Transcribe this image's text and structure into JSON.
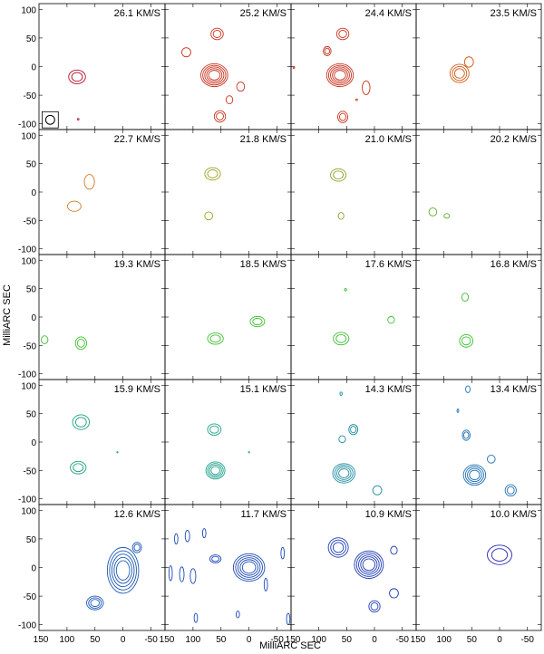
{
  "chart_data": {
    "type": "contour_grid",
    "title": "",
    "xlabel": "MilliARC SEC",
    "ylabel": "MilliARC SEC",
    "xlim": [
      150,
      -75
    ],
    "ylim": [
      -110,
      110
    ],
    "xticks": [
      150,
      100,
      50,
      0,
      -50
    ],
    "yticks": [
      100,
      50,
      0,
      -50,
      -100
    ],
    "x_tick_labels": [
      "150",
      "100",
      "50",
      "0",
      "-50"
    ],
    "y_tick_labels": [
      "100",
      "50",
      "0",
      "-50",
      "-100"
    ],
    "beam": {
      "x": 130,
      "y": -93,
      "r": 8
    },
    "panels": [
      {
        "label": "26.1 KM/S",
        "velocity": 26.1,
        "color": "#b0102c",
        "sources": [
          {
            "x": 82,
            "y": -18,
            "rx": 15,
            "ry": 12,
            "levels": 2
          },
          {
            "x": 80,
            "y": -92,
            "rx": 1.5,
            "ry": 1.5,
            "levels": 1
          }
        ]
      },
      {
        "label": "25.2 KM/S",
        "velocity": 25.2,
        "color": "#c8321e",
        "sources": [
          {
            "x": 62,
            "y": -15,
            "rx": 24,
            "ry": 20,
            "levels": 5
          },
          {
            "x": 57,
            "y": 57,
            "rx": 11,
            "ry": 10,
            "levels": 2
          },
          {
            "x": 112,
            "y": 25,
            "rx": 8,
            "ry": 8,
            "levels": 1
          },
          {
            "x": 15,
            "y": -35,
            "rx": 7,
            "ry": 8,
            "levels": 1
          },
          {
            "x": 35,
            "y": -58,
            "rx": 6,
            "ry": 7,
            "levels": 1
          },
          {
            "x": 52,
            "y": -87,
            "rx": 10,
            "ry": 10,
            "levels": 2
          }
        ]
      },
      {
        "label": "24.4 KM/S",
        "velocity": 24.4,
        "color": "#c8321e",
        "sources": [
          {
            "x": 62,
            "y": -15,
            "rx": 24,
            "ry": 20,
            "levels": 5
          },
          {
            "x": 57,
            "y": 57,
            "rx": 11,
            "ry": 10,
            "levels": 2
          },
          {
            "x": 85,
            "y": 27,
            "rx": 7,
            "ry": 8,
            "levels": 2
          },
          {
            "x": 15,
            "y": -37,
            "rx": 7,
            "ry": 12,
            "levels": 1
          },
          {
            "x": 57,
            "y": -88,
            "rx": 9,
            "ry": 10,
            "levels": 2
          },
          {
            "x": 32,
            "y": -58,
            "rx": 1.5,
            "ry": 1.5,
            "levels": 1
          },
          {
            "x": 145,
            "y": -2,
            "rx": 1.5,
            "ry": 1.5,
            "levels": 1
          }
        ]
      },
      {
        "label": "23.5 KM/S",
        "velocity": 23.5,
        "color": "#d25a14",
        "sources": [
          {
            "x": 72,
            "y": -12,
            "rx": 17,
            "ry": 16,
            "levels": 3
          },
          {
            "x": 55,
            "y": 8,
            "rx": 8,
            "ry": 9,
            "levels": 1
          }
        ]
      },
      {
        "label": "22.7 KM/S",
        "velocity": 22.7,
        "color": "#d2781e",
        "sources": [
          {
            "x": 60,
            "y": 18,
            "rx": 9,
            "ry": 13,
            "levels": 1
          },
          {
            "x": 87,
            "y": -25,
            "rx": 12,
            "ry": 9,
            "levels": 1
          }
        ]
      },
      {
        "label": "21.8 KM/S",
        "velocity": 21.8,
        "color": "#9aa01e",
        "sources": [
          {
            "x": 65,
            "y": 32,
            "rx": 14,
            "ry": 11,
            "levels": 2
          },
          {
            "x": 72,
            "y": -42,
            "rx": 7,
            "ry": 7,
            "levels": 1
          }
        ]
      },
      {
        "label": "21.0 KM/S",
        "velocity": 21.0,
        "color": "#8aa028",
        "sources": [
          {
            "x": 65,
            "y": 30,
            "rx": 14,
            "ry": 11,
            "levels": 2
          },
          {
            "x": 60,
            "y": -42,
            "rx": 5,
            "ry": 6,
            "levels": 1
          }
        ]
      },
      {
        "label": "20.2 KM/S",
        "velocity": 20.2,
        "color": "#5aaa28",
        "sources": [
          {
            "x": 120,
            "y": -35,
            "rx": 7,
            "ry": 7,
            "levels": 1
          },
          {
            "x": 95,
            "y": -42,
            "rx": 5,
            "ry": 4,
            "levels": 1
          }
        ]
      },
      {
        "label": "19.3 KM/S",
        "velocity": 19.3,
        "color": "#3cbe32",
        "sources": [
          {
            "x": 140,
            "y": -40,
            "rx": 6,
            "ry": 7,
            "levels": 1
          },
          {
            "x": 75,
            "y": -46,
            "rx": 10,
            "ry": 11,
            "levels": 2
          }
        ]
      },
      {
        "label": "18.5 KM/S",
        "velocity": 18.5,
        "color": "#3cbe32",
        "sources": [
          {
            "x": 60,
            "y": -38,
            "rx": 14,
            "ry": 10,
            "levels": 2
          },
          {
            "x": -15,
            "y": -8,
            "rx": 13,
            "ry": 9,
            "levels": 2
          }
        ]
      },
      {
        "label": "17.6 KM/S",
        "velocity": 17.6,
        "color": "#3cbe32",
        "sources": [
          {
            "x": 60,
            "y": -38,
            "rx": 14,
            "ry": 11,
            "levels": 2
          },
          {
            "x": 52,
            "y": 48,
            "rx": 2,
            "ry": 2,
            "levels": 1
          },
          {
            "x": -30,
            "y": -5,
            "rx": 6,
            "ry": 6,
            "levels": 1
          }
        ]
      },
      {
        "label": "16.8 KM/S",
        "velocity": 16.8,
        "color": "#3cbe32",
        "sources": [
          {
            "x": 60,
            "y": -42,
            "rx": 12,
            "ry": 11,
            "levels": 2
          },
          {
            "x": 62,
            "y": 35,
            "rx": 6,
            "ry": 7,
            "levels": 1
          }
        ]
      },
      {
        "label": "15.9 KM/S",
        "velocity": 15.9,
        "color": "#1ea082",
        "sources": [
          {
            "x": 75,
            "y": 35,
            "rx": 15,
            "ry": 13,
            "levels": 2
          },
          {
            "x": 80,
            "y": -45,
            "rx": 14,
            "ry": 11,
            "levels": 2
          },
          {
            "x": 10,
            "y": -18,
            "rx": 1,
            "ry": 1,
            "levels": 1
          }
        ]
      },
      {
        "label": "15.1 KM/S",
        "velocity": 15.1,
        "color": "#1ea08c",
        "sources": [
          {
            "x": 62,
            "y": 22,
            "rx": 12,
            "ry": 10,
            "levels": 2
          },
          {
            "x": 60,
            "y": -50,
            "rx": 17,
            "ry": 15,
            "levels": 4
          },
          {
            "x": 0,
            "y": -18,
            "rx": 1,
            "ry": 1,
            "levels": 1
          }
        ]
      },
      {
        "label": "14.3 KM/S",
        "velocity": 14.3,
        "color": "#1e8ca0",
        "sources": [
          {
            "x": 55,
            "y": -55,
            "rx": 20,
            "ry": 17,
            "levels": 4
          },
          {
            "x": 38,
            "y": 22,
            "rx": 8,
            "ry": 9,
            "levels": 2
          },
          {
            "x": 58,
            "y": 5,
            "rx": 6,
            "ry": 6,
            "levels": 1
          },
          {
            "x": -5,
            "y": -85,
            "rx": 8,
            "ry": 8,
            "levels": 1
          },
          {
            "x": 60,
            "y": 85,
            "rx": 2,
            "ry": 3,
            "levels": 1
          }
        ]
      },
      {
        "label": "13.4 KM/S",
        "velocity": 13.4,
        "color": "#1e6eb4",
        "sources": [
          {
            "x": 45,
            "y": -58,
            "rx": 20,
            "ry": 18,
            "levels": 4
          },
          {
            "x": 60,
            "y": 12,
            "rx": 7,
            "ry": 9,
            "levels": 2
          },
          {
            "x": 57,
            "y": 93,
            "rx": 4,
            "ry": 6,
            "levels": 1
          },
          {
            "x": 75,
            "y": 55,
            "rx": 1.5,
            "ry": 3,
            "levels": 1
          },
          {
            "x": 15,
            "y": -30,
            "rx": 7,
            "ry": 7,
            "levels": 1
          },
          {
            "x": -20,
            "y": -85,
            "rx": 10,
            "ry": 10,
            "levels": 2
          }
        ]
      },
      {
        "label": "12.6 KM/S",
        "velocity": 12.6,
        "color": "#1e5ab4",
        "sources": [
          {
            "x": 0,
            "y": -5,
            "rx": 28,
            "ry": 40,
            "levels": 5
          },
          {
            "x": -25,
            "y": 35,
            "rx": 8,
            "ry": 9,
            "levels": 2
          },
          {
            "x": 50,
            "y": -62,
            "rx": 15,
            "ry": 12,
            "levels": 3
          }
        ]
      },
      {
        "label": "11.7 KM/S",
        "velocity": 11.7,
        "color": "#1e4ab4",
        "sources": [
          {
            "x": 0,
            "y": 0,
            "rx": 28,
            "ry": 24,
            "levels": 5
          },
          {
            "x": 60,
            "y": 15,
            "rx": 10,
            "ry": 7,
            "levels": 2
          },
          {
            "x": 100,
            "y": -15,
            "rx": 5,
            "ry": 13,
            "levels": 1
          },
          {
            "x": 120,
            "y": -12,
            "rx": 4,
            "ry": 13,
            "levels": 1
          },
          {
            "x": 140,
            "y": -10,
            "rx": 3,
            "ry": 13,
            "levels": 1
          },
          {
            "x": 110,
            "y": 55,
            "rx": 4,
            "ry": 10,
            "levels": 1
          },
          {
            "x": 130,
            "y": 50,
            "rx": 3,
            "ry": 9,
            "levels": 1
          },
          {
            "x": 80,
            "y": 60,
            "rx": 3,
            "ry": 8,
            "levels": 1
          },
          {
            "x": -30,
            "y": -30,
            "rx": 3,
            "ry": 11,
            "levels": 1
          },
          {
            "x": -60,
            "y": 25,
            "rx": 3,
            "ry": 10,
            "levels": 1
          },
          {
            "x": -70,
            "y": -90,
            "rx": 3,
            "ry": 10,
            "levels": 1
          },
          {
            "x": 95,
            "y": -88,
            "rx": 3,
            "ry": 8,
            "levels": 1
          },
          {
            "x": 20,
            "y": -82,
            "rx": 3,
            "ry": 6,
            "levels": 1
          }
        ]
      },
      {
        "label": "10.9 KM/S",
        "velocity": 10.9,
        "color": "#1e3cb4",
        "sources": [
          {
            "x": 10,
            "y": 5,
            "rx": 26,
            "ry": 24,
            "levels": 5
          },
          {
            "x": 65,
            "y": 35,
            "rx": 18,
            "ry": 17,
            "levels": 3
          },
          {
            "x": 0,
            "y": -68,
            "rx": 10,
            "ry": 10,
            "levels": 2
          },
          {
            "x": -35,
            "y": -45,
            "rx": 8,
            "ry": 8,
            "levels": 1
          },
          {
            "x": -35,
            "y": 30,
            "rx": 6,
            "ry": 7,
            "levels": 1
          }
        ]
      },
      {
        "label": "10.0 KM/S",
        "velocity": 10.0,
        "color": "#2a2ab4",
        "sources": [
          {
            "x": 0,
            "y": 22,
            "rx": 22,
            "ry": 17,
            "levels": 2
          }
        ]
      }
    ]
  }
}
